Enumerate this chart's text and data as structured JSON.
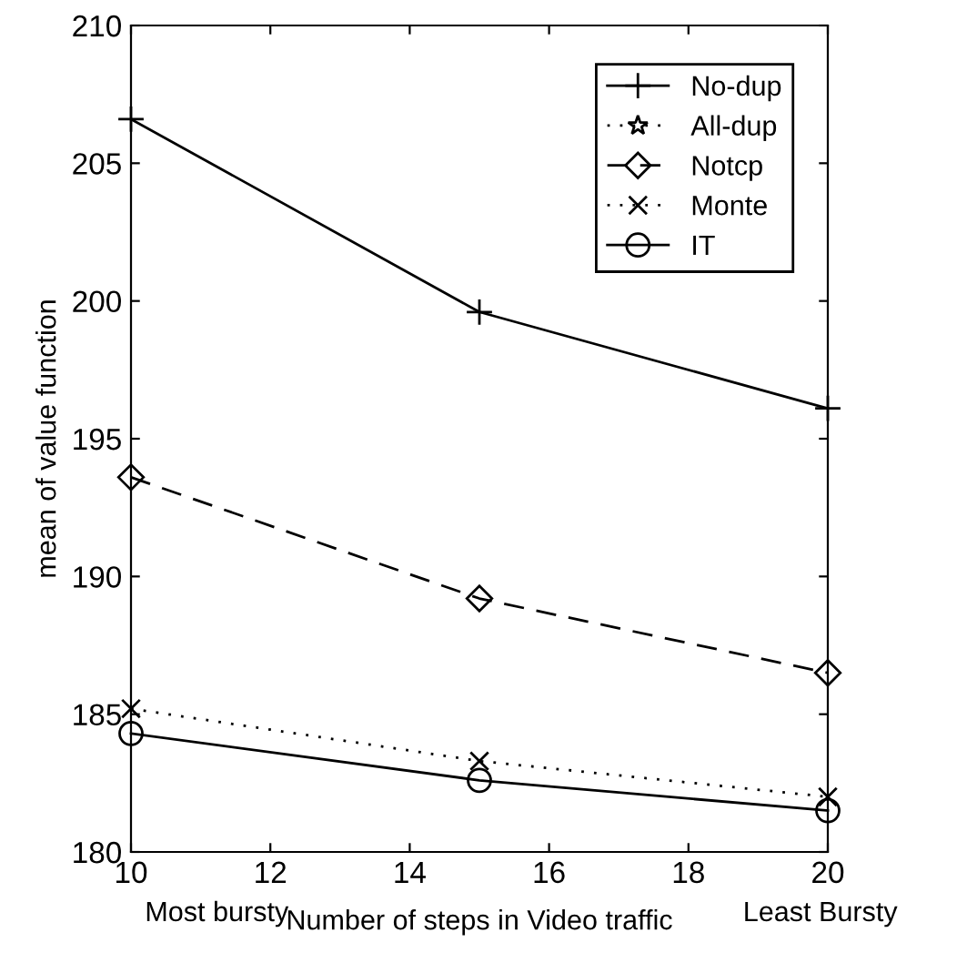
{
  "chart_data": {
    "type": "line",
    "xlabel": "Number of steps in Video traffic",
    "ylabel": "mean of value function",
    "x": [
      10,
      15,
      20
    ],
    "xlim": [
      10,
      20
    ],
    "ylim": [
      180,
      210
    ],
    "xticks": [
      10,
      12,
      14,
      16,
      18,
      20
    ],
    "yticks": [
      180,
      185,
      190,
      195,
      200,
      205,
      210
    ],
    "grid": false,
    "legend": "top right",
    "series": [
      {
        "name": "No-dup",
        "color": "#000000",
        "values": [
          206.6,
          199.6,
          196.1
        ],
        "marker": "plus",
        "line_style": "solid"
      },
      {
        "name": "All-dup",
        "color": "#000000",
        "values": [
          null,
          null,
          null
        ],
        "marker": "star",
        "line_style": "dotted"
      },
      {
        "name": "Notcp",
        "color": "#000000",
        "values": [
          193.6,
          189.2,
          186.5
        ],
        "marker": "diamond",
        "line_style": "dashed"
      },
      {
        "name": "Monte",
        "color": "#000000",
        "values": [
          185.2,
          183.3,
          182.0
        ],
        "marker": "cross",
        "line_style": "dotted"
      },
      {
        "name": "IT",
        "color": "#000000",
        "values": [
          184.3,
          182.6,
          181.5
        ],
        "marker": "circle",
        "line_style": "solid"
      }
    ],
    "annotations": [
      "Most bursty",
      "Least Bursty"
    ]
  }
}
